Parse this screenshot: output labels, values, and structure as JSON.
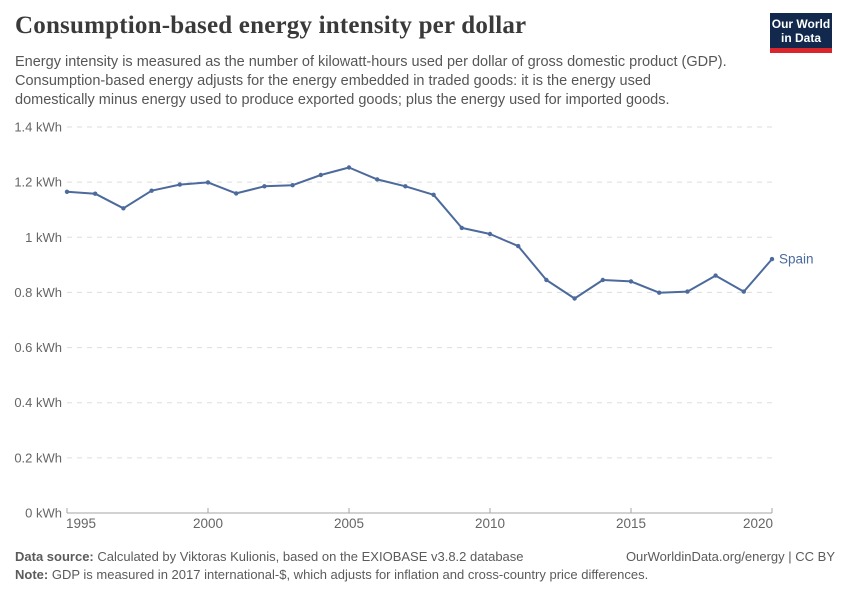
{
  "header": {
    "title": "Consumption-based energy intensity per dollar",
    "subtitle": "Energy intensity is measured as the number of kilowatt-hours used per dollar of gross domestic product (GDP).\nConsumption-based energy adjusts for the energy embedded in traded goods: it is the energy used\ndomestically minus energy used to produce exported goods; plus the energy used for imported goods.",
    "logo": {
      "line1": "Our World",
      "line2": "in Data",
      "bg_color": "#12294d",
      "stripe_color": "#d8262c"
    }
  },
  "chart_data": {
    "type": "line",
    "title": "Consumption-based energy intensity per dollar",
    "xlabel": "",
    "ylabel": "",
    "x": [
      1995,
      1996,
      1997,
      1998,
      1999,
      2000,
      2001,
      2002,
      2003,
      2004,
      2005,
      2006,
      2007,
      2008,
      2009,
      2010,
      2011,
      2012,
      2013,
      2014,
      2015,
      2016,
      2017,
      2018,
      2019,
      2020
    ],
    "series": [
      {
        "name": "Spain",
        "color": "#4c6a9c",
        "values": [
          1.165,
          1.158,
          1.105,
          1.169,
          1.191,
          1.199,
          1.159,
          1.185,
          1.189,
          1.226,
          1.253,
          1.21,
          1.185,
          1.154,
          1.034,
          1.012,
          0.968,
          0.845,
          0.778,
          0.845,
          0.84,
          0.799,
          0.803,
          0.861,
          0.803,
          0.921
        ]
      }
    ],
    "ylim": [
      0,
      1.4
    ],
    "xlim": [
      1995,
      2020
    ],
    "yticks": [
      {
        "value": 0,
        "label": "0 kWh"
      },
      {
        "value": 0.2,
        "label": "0.2 kWh"
      },
      {
        "value": 0.4,
        "label": "0.4 kWh"
      },
      {
        "value": 0.6,
        "label": "0.6 kWh"
      },
      {
        "value": 0.8,
        "label": "0.8 kWh"
      },
      {
        "value": 1,
        "label": "1 kWh"
      },
      {
        "value": 1.2,
        "label": "1.2 kWh"
      },
      {
        "value": 1.4,
        "label": "1.4 kWh"
      }
    ],
    "xticks": [
      {
        "value": 1995,
        "label": "1995"
      },
      {
        "value": 2000,
        "label": "2000"
      },
      {
        "value": 2005,
        "label": "2005"
      },
      {
        "value": 2010,
        "label": "2010"
      },
      {
        "value": 2015,
        "label": "2015"
      },
      {
        "value": 2020,
        "label": "2020"
      }
    ],
    "grid": {
      "horizontal": true,
      "style": "dashed",
      "color": "#dddddd"
    },
    "axis_color": "#a5a5a5",
    "tick_label_color": "#666666",
    "legend": "line-end-label",
    "end_label": "Spain"
  },
  "footer": {
    "datasource_label": "Data source:",
    "datasource_text": "Calculated by Viktoras Kulionis, based on the EXIOBASE v3.8.2 database",
    "note_label": "Note:",
    "note_text": "GDP is measured in 2017 international-$, which adjusts for inflation and cross-country price differences.",
    "link": "OurWorldinData.org/energy | CC BY"
  }
}
